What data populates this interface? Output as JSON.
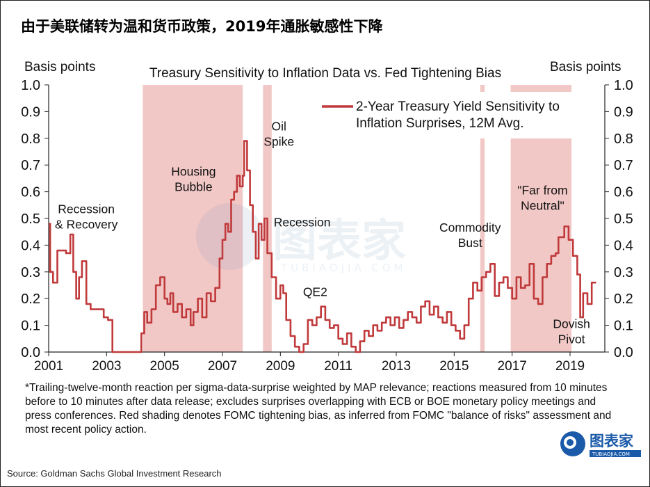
{
  "title": "由于美联储转为温和货币政策，2019年通胀敏感性下降",
  "chart_data": {
    "type": "line",
    "title": "Treasury Sensitivity to Inflation Data vs. Fed Tightening Bias",
    "ylabel_left": "Basis points",
    "ylabel_right": "Basis points",
    "ylim": [
      0,
      1.0
    ],
    "yticks": [
      "0.0",
      "0.1",
      "0.2",
      "0.3",
      "0.4",
      "0.5",
      "0.6",
      "0.7",
      "0.8",
      "0.9",
      "1.0"
    ],
    "xlim": [
      2001,
      2020.2
    ],
    "xticks": [
      "2001",
      "2003",
      "2005",
      "2007",
      "2009",
      "2011",
      "2013",
      "2015",
      "2017",
      "2019"
    ],
    "legend_position": "top-right",
    "series": [
      {
        "name": "2-Year Treasury Yield Sensitivity to Inflation Surprises, 12M Avg.",
        "color": "#c0393b",
        "x": [
          2001.0,
          2001.05,
          2001.15,
          2001.3,
          2001.45,
          2001.6,
          2001.75,
          2001.85,
          2001.95,
          2002.05,
          2002.15,
          2002.3,
          2002.45,
          2002.6,
          2002.75,
          2002.9,
          2003.05,
          2003.2,
          2003.5,
          2003.8,
          2004.1,
          2004.2,
          2004.3,
          2004.4,
          2004.55,
          2004.7,
          2004.85,
          2005.0,
          2005.1,
          2005.2,
          2005.3,
          2005.45,
          2005.6,
          2005.75,
          2005.9,
          2006.0,
          2006.15,
          2006.3,
          2006.45,
          2006.6,
          2006.75,
          2006.9,
          2007.0,
          2007.1,
          2007.2,
          2007.3,
          2007.4,
          2007.5,
          2007.6,
          2007.7,
          2007.75,
          2007.85,
          2007.95,
          2008.05,
          2008.15,
          2008.25,
          2008.35,
          2008.45,
          2008.55,
          2008.7,
          2008.85,
          2009.0,
          2009.1,
          2009.2,
          2009.35,
          2009.5,
          2009.65,
          2009.8,
          2009.95,
          2010.1,
          2010.25,
          2010.4,
          2010.55,
          2010.7,
          2010.85,
          2011.0,
          2011.15,
          2011.3,
          2011.45,
          2011.6,
          2011.75,
          2011.9,
          2012.05,
          2012.2,
          2012.35,
          2012.5,
          2012.65,
          2012.8,
          2012.95,
          2013.1,
          2013.25,
          2013.4,
          2013.55,
          2013.7,
          2013.85,
          2014.0,
          2014.15,
          2014.3,
          2014.45,
          2014.6,
          2014.75,
          2014.9,
          2015.05,
          2015.2,
          2015.35,
          2015.5,
          2015.65,
          2015.8,
          2015.95,
          2016.1,
          2016.25,
          2016.4,
          2016.55,
          2016.7,
          2016.85,
          2017.0,
          2017.15,
          2017.3,
          2017.45,
          2017.6,
          2017.75,
          2017.9,
          2018.05,
          2018.2,
          2018.35,
          2018.5,
          2018.6,
          2018.7,
          2018.8,
          2018.95,
          2019.1,
          2019.25,
          2019.35,
          2019.45,
          2019.6,
          2019.75,
          2019.9
        ],
        "values": [
          0.48,
          0.3,
          0.26,
          0.38,
          0.38,
          0.37,
          0.44,
          0.3,
          0.2,
          0.28,
          0.34,
          0.18,
          0.16,
          0.16,
          0.16,
          0.13,
          0.12,
          0.0,
          0.0,
          0.0,
          0.0,
          0.07,
          0.15,
          0.11,
          0.16,
          0.25,
          0.28,
          0.2,
          0.18,
          0.22,
          0.15,
          0.18,
          0.13,
          0.16,
          0.1,
          0.15,
          0.2,
          0.13,
          0.22,
          0.19,
          0.24,
          0.35,
          0.42,
          0.48,
          0.45,
          0.57,
          0.6,
          0.66,
          0.62,
          0.66,
          0.79,
          0.68,
          0.55,
          0.45,
          0.35,
          0.48,
          0.42,
          0.5,
          0.37,
          0.28,
          0.2,
          0.25,
          0.22,
          0.12,
          0.06,
          0.02,
          0.0,
          0.03,
          0.12,
          0.1,
          0.13,
          0.17,
          0.12,
          0.09,
          0.1,
          0.05,
          0.03,
          0.07,
          0.02,
          0.0,
          0.04,
          0.08,
          0.06,
          0.1,
          0.08,
          0.11,
          0.13,
          0.1,
          0.13,
          0.09,
          0.12,
          0.15,
          0.13,
          0.11,
          0.17,
          0.19,
          0.14,
          0.17,
          0.13,
          0.11,
          0.15,
          0.1,
          0.08,
          0.05,
          0.1,
          0.2,
          0.26,
          0.23,
          0.28,
          0.3,
          0.33,
          0.21,
          0.26,
          0.28,
          0.24,
          0.2,
          0.28,
          0.24,
          0.25,
          0.33,
          0.2,
          0.18,
          0.28,
          0.33,
          0.36,
          0.37,
          0.43,
          0.43,
          0.47,
          0.42,
          0.36,
          0.29,
          0.13,
          0.22,
          0.18,
          0.26,
          0.26
        ]
      }
    ],
    "shaded_regions": [
      {
        "start": 2004.25,
        "end": 2007.7
      },
      {
        "start": 2008.4,
        "end": 2008.7
      },
      {
        "start": 2015.9,
        "end": 2016.05
      },
      {
        "start": 2016.95,
        "end": 2018.45
      },
      {
        "start": 2018.45,
        "end": 2019.05
      }
    ],
    "annotations": [
      {
        "lines": [
          "Recession",
          "& Recovery"
        ],
        "x": 2002.3,
        "y": 0.52
      },
      {
        "lines": [
          "Housing",
          "Bubble"
        ],
        "x": 2006.0,
        "y": 0.66
      },
      {
        "lines": [
          "Oil",
          "Spike"
        ],
        "x": 2008.95,
        "y": 0.83
      },
      {
        "lines": [
          "Recession"
        ],
        "x": 2009.75,
        "y": 0.47
      },
      {
        "lines": [
          "QE2"
        ],
        "x": 2010.2,
        "y": 0.21
      },
      {
        "lines": [
          "Commodity",
          "Bust"
        ],
        "x": 2015.55,
        "y": 0.45
      },
      {
        "lines": [
          "\"Far from",
          "Neutral\""
        ],
        "x": 2018.05,
        "y": 0.59
      },
      {
        "lines": [
          "Dovish",
          "Pivot"
        ],
        "x": 2019.05,
        "y": 0.09
      }
    ],
    "shade_color": "#f1c8c6"
  },
  "footnote": "*Trailing-twelve-month reaction per sigma-data-surprise weighted by MAP relevance; reactions measured from 10 minutes before to 10 minutes after  data release; excludes surprises overlapping with ECB or BOE monetary policy meetings and press conferences. Red shading denotes FOMC tightening bias, as inferred from FOMC \"balance of risks\" assessment and most recent policy action.",
  "source": "Source: Goldman Sachs Global Investment Research",
  "logo": {
    "name": "图表家",
    "sub": "TUBIAOJIA.COM"
  },
  "watermark": {
    "name": "图表家",
    "sub": "TUBIAOJIA.COM"
  }
}
